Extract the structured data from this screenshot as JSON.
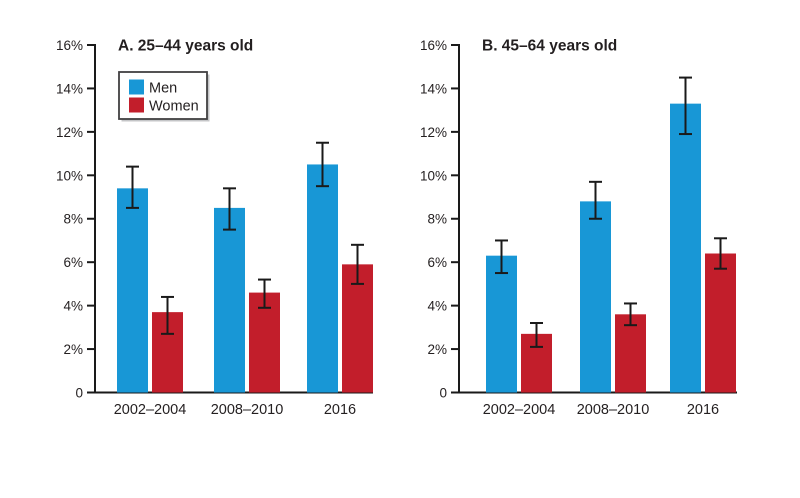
{
  "colors": {
    "men": "#1897d6",
    "women": "#c21e2b",
    "axis": "#1a1a1a",
    "error_bar": "#1a1a1a",
    "text": "#231f20",
    "legend_border": "#414042",
    "legend_shadow": "#9c9ea1",
    "background": "#ffffff"
  },
  "legend": {
    "entries": [
      {
        "label": "Men",
        "color_key": "men"
      },
      {
        "label": "Women",
        "color_key": "women"
      }
    ]
  },
  "chart_data": [
    {
      "type": "bar",
      "title": "A. 25–44 years old",
      "categories": [
        "2002–2004",
        "2008–2010",
        "2016"
      ],
      "series": [
        {
          "name": "Men",
          "values": [
            9.4,
            8.5,
            10.5
          ],
          "ci_low": [
            8.5,
            7.5,
            9.5
          ],
          "ci_high": [
            10.4,
            9.4,
            11.5
          ]
        },
        {
          "name": "Women",
          "values": [
            3.7,
            4.6,
            5.9
          ],
          "ci_low": [
            2.7,
            3.9,
            5.0
          ],
          "ci_high": [
            4.4,
            5.2,
            6.8
          ]
        }
      ],
      "ylabel": "",
      "xlabel": "",
      "ylim": [
        0,
        16
      ],
      "ytick_step": 2,
      "ytick_labels": [
        "0",
        "2%",
        "4%",
        "6%",
        "8%",
        "10%",
        "12%",
        "14%",
        "16%"
      ],
      "grid": false,
      "legend_position": "upper-left-inside",
      "error_bars": true
    },
    {
      "type": "bar",
      "title": "B. 45–64 years old",
      "categories": [
        "2002–2004",
        "2008–2010",
        "2016"
      ],
      "series": [
        {
          "name": "Men",
          "values": [
            6.3,
            8.8,
            13.3
          ],
          "ci_low": [
            5.5,
            8.0,
            11.9
          ],
          "ci_high": [
            7.0,
            9.7,
            14.5
          ]
        },
        {
          "name": "Women",
          "values": [
            2.7,
            3.6,
            6.4
          ],
          "ci_low": [
            2.1,
            3.1,
            5.7
          ],
          "ci_high": [
            3.2,
            4.1,
            7.1
          ]
        }
      ],
      "ylabel": "",
      "xlabel": "",
      "ylim": [
        0,
        16
      ],
      "ytick_step": 2,
      "ytick_labels": [
        "0",
        "2%",
        "4%",
        "6%",
        "8%",
        "10%",
        "12%",
        "14%",
        "16%"
      ],
      "grid": false,
      "legend_position": "none",
      "error_bars": true
    }
  ]
}
